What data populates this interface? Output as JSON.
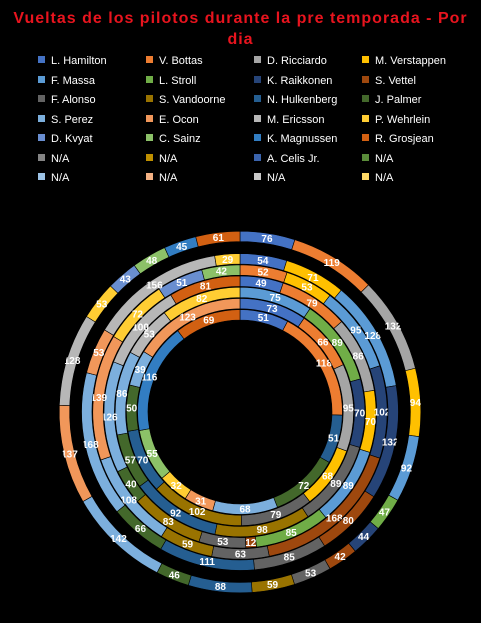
{
  "title": "Vueltas de los pilotos durante la pre temporada - Por dia",
  "chart_data": {
    "type": "doughnut",
    "title": "Vueltas de los pilotos durante la pre temporada - Por dia",
    "legend_position": "top",
    "series": [
      {
        "name": "L. Hamilton",
        "color": "#4472c4",
        "values": [
          51,
          73
        ]
      },
      {
        "name": "V. Bottas",
        "color": "#ed7d31",
        "values": [
          118,
          66
        ]
      },
      {
        "name": "D. Ricciardo",
        "color": "#a5a5a5",
        "values": [
          55,
          95
        ]
      },
      {
        "name": "M. Verstappen",
        "color": "#ffc000",
        "values": [
          116,
          68
        ]
      },
      {
        "name": "F. Massa",
        "color": "#5b9bd5",
        "values": [
          69,
          79
        ]
      },
      {
        "name": "L. Stroll",
        "color": "#70ad47",
        "values": [
          83,
          86
        ]
      },
      {
        "name": "K. Raikkonen",
        "color": "#264478",
        "values": [
          81,
          49
        ]
      },
      {
        "name": "S. Vettel",
        "color": "#9e480e",
        "values": [
          96,
          79
        ]
      },
      {
        "name": "F. Alonso",
        "color": "#636363",
        "values": [
          119,
          52
        ]
      },
      {
        "name": "S. Vandoorne",
        "color": "#997300",
        "values": [
          76,
          54
        ]
      },
      {
        "name": "N. Hulkenberg",
        "color": "#255e91",
        "values": [
          132,
          95
        ]
      },
      {
        "name": "J. Palmer",
        "color": "#43682b",
        "values": [
          94,
          53
        ]
      },
      {
        "name": "S. Perez",
        "color": "#7cafdd",
        "values": [
          92,
          70
        ]
      },
      {
        "name": "E. Ocon",
        "color": "#f1975a",
        "values": [
          47,
          71
        ]
      },
      {
        "name": "M. Ericsson",
        "color": "#b7b7b7",
        "values": [
          44,
          89
        ]
      },
      {
        "name": "P. Wehrlein",
        "color": "#ffcd33",
        "values": [
          42,
          128
        ]
      },
      {
        "name": "D. Kvyat",
        "color": "#698ed0",
        "values": [
          53,
          85
        ]
      },
      {
        "name": "C. Sainz",
        "color": "#8cc168",
        "values": [
          59,
          102
        ]
      },
      {
        "name": "K. Magnussen",
        "color": "#327dc2",
        "values": [
          88,
          70
        ]
      },
      {
        "name": "R. Grosjean",
        "color": "#d26012",
        "values": [
          46,
          102
        ]
      },
      {
        "name": "N/A",
        "color": "#848484",
        "values": [
          0,
          0
        ]
      },
      {
        "name": "N/A",
        "color": "#bf9000",
        "values": [
          0,
          0
        ]
      },
      {
        "name": "A. Celis Jr.",
        "color": "#3b64ad",
        "values": [
          0,
          0
        ]
      },
      {
        "name": "N/A",
        "color": "#5a8c3a",
        "values": [
          0,
          0
        ]
      },
      {
        "name": "N/A",
        "color": "#9dc3e6",
        "values": [
          0,
          0
        ]
      },
      {
        "name": "N/A",
        "color": "#f4b183",
        "values": [
          0,
          0
        ]
      },
      {
        "name": "N/A",
        "color": "#c9c9c9",
        "values": [
          0,
          0
        ]
      },
      {
        "name": "N/A",
        "color": "#ffd966",
        "values": [
          0,
          0
        ]
      }
    ],
    "rings": [
      {
        "values": [
          51,
          118,
          0,
          0,
          0,
          0,
          0,
          0,
          0,
          0,
          51,
          72,
          68,
          31,
          0,
          32,
          0,
          55,
          116,
          69
        ]
      },
      {
        "values": [
          73,
          66,
          95,
          68,
          0,
          0,
          0,
          0,
          79,
          102,
          70,
          50,
          39,
          123,
          0,
          0,
          0,
          0,
          0,
          0
        ]
      },
      {
        "values": [
          0,
          0,
          0,
          0,
          75,
          89,
          70,
          0,
          89,
          98,
          92,
          57,
          86,
          0,
          53,
          82,
          0,
          0,
          0,
          0
        ]
      },
      {
        "values": [
          49,
          79,
          86,
          70,
          89,
          85,
          0,
          12,
          53,
          83,
          0,
          40,
          126,
          0,
          100,
          0,
          0,
          0,
          0,
          81
        ]
      },
      {
        "values": [
          0,
          52,
          0,
          53,
          95,
          0,
          102,
          168,
          63,
          59,
          0,
          0,
          108,
          139,
          0,
          72,
          51,
          42,
          0,
          0
        ]
      },
      {
        "values": [
          54,
          0,
          0,
          71,
          128,
          0,
          132,
          80,
          85,
          0,
          111,
          66,
          168,
          53,
          156,
          29,
          0,
          0,
          0,
          0
        ]
      },
      {
        "values": [
          0,
          0,
          0,
          0,
          0,
          0,
          0,
          0,
          0,
          0,
          0,
          0,
          0,
          0,
          0,
          0,
          0,
          0,
          0,
          0
        ]
      },
      {
        "values": [
          76,
          119,
          132,
          94,
          92,
          47,
          44,
          42,
          53,
          59,
          88,
          46,
          142,
          137,
          128,
          53,
          43,
          48,
          45,
          61
        ]
      },
      {
        "values": [
          0,
          0,
          0,
          0,
          0,
          0,
          0,
          0,
          0,
          0,
          0,
          0,
          0,
          0,
          0,
          0,
          0,
          0,
          0,
          0
        ]
      }
    ]
  }
}
